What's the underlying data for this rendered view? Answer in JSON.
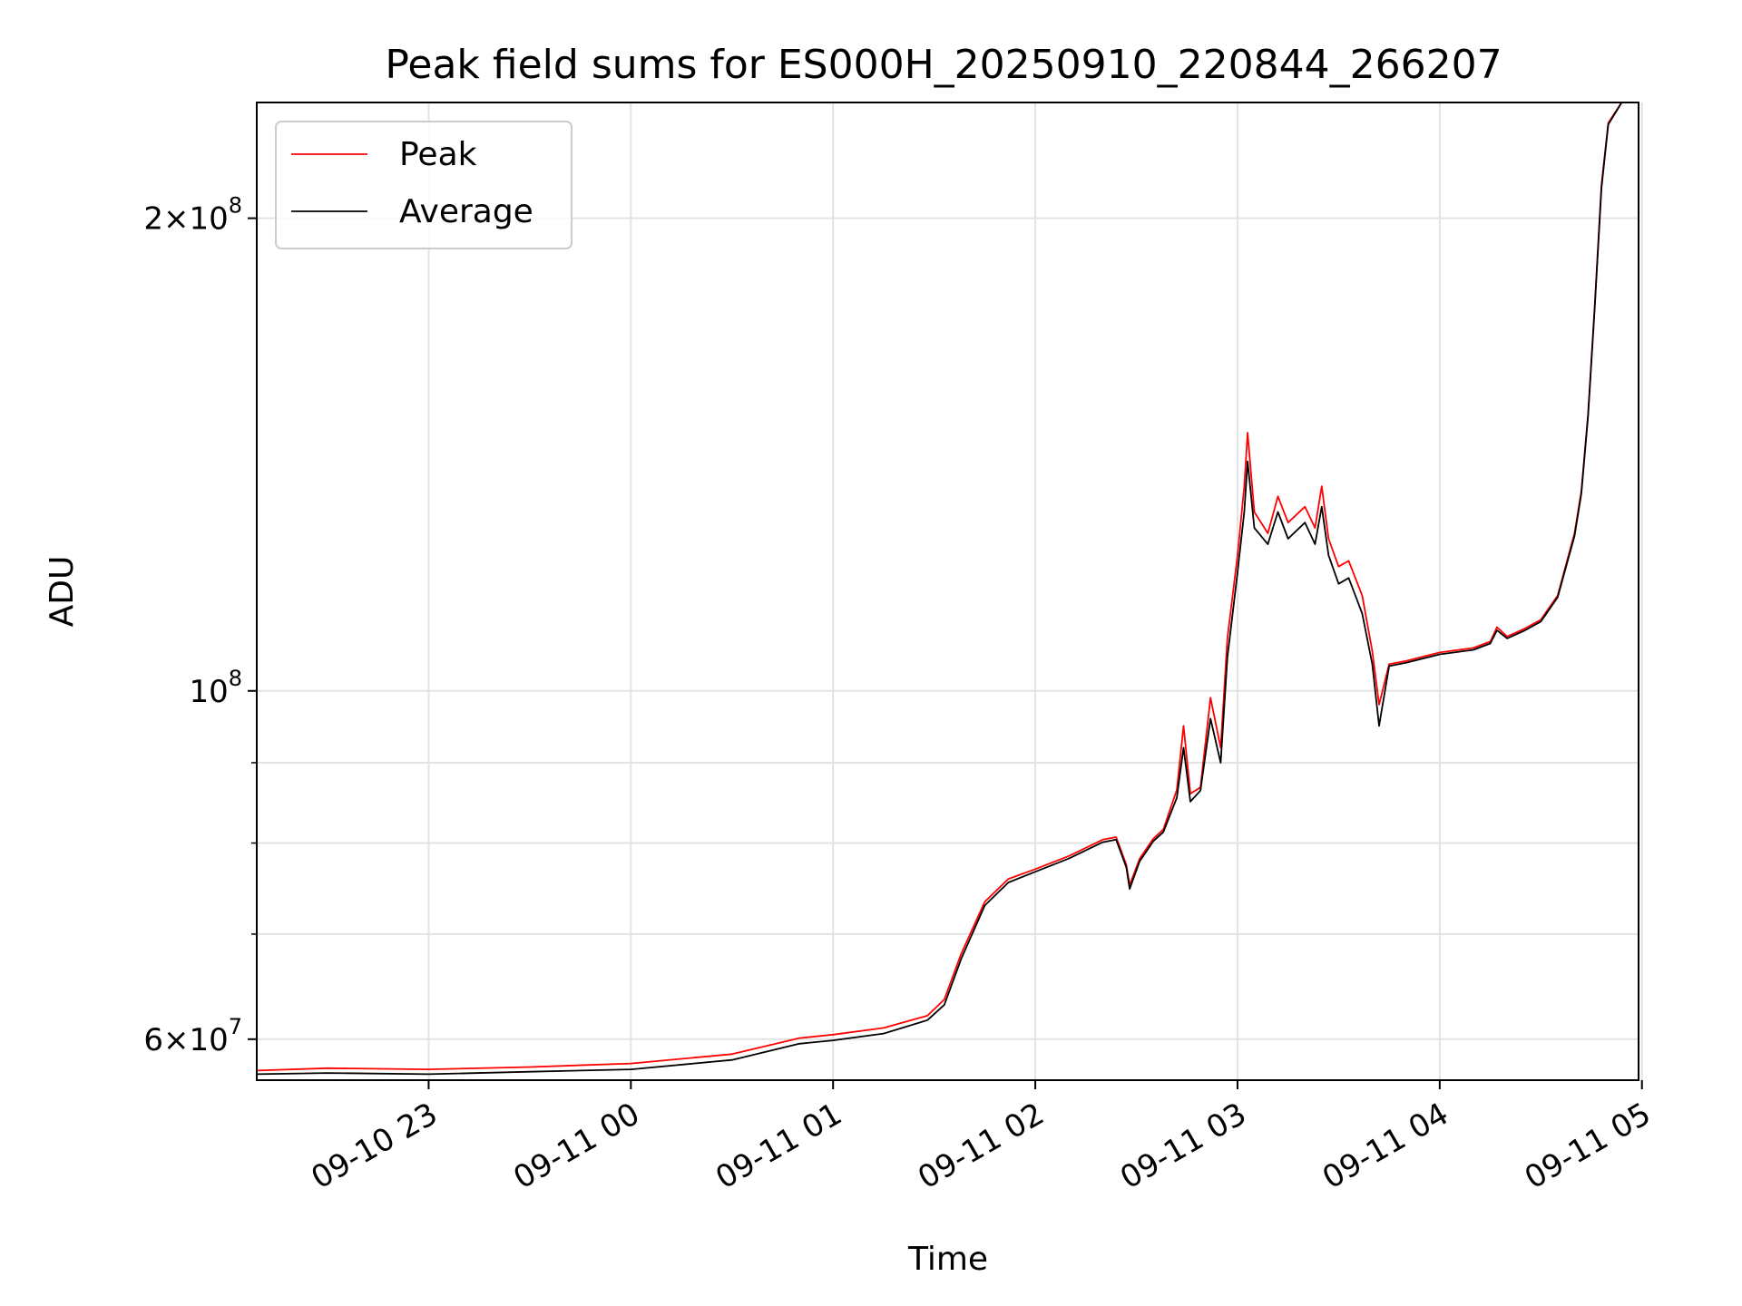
{
  "chart_data": {
    "type": "line",
    "title": "Peak field sums for ES000H_20250910_220844_266207",
    "xlabel": "Time",
    "ylabel": "ADU",
    "y_scale": "log",
    "x_range": [
      "2025-09-10 22:09",
      "2025-09-11 04:59"
    ],
    "ylim": [
      56500000,
      237000000
    ],
    "grid": true,
    "legend_position": "top-left",
    "x_ticks": [
      {
        "time": "2025-09-10 23:00",
        "label": "09-10 23"
      },
      {
        "time": "2025-09-11 00:00",
        "label": "09-11 00"
      },
      {
        "time": "2025-09-11 01:00",
        "label": "09-11 01"
      },
      {
        "time": "2025-09-11 02:00",
        "label": "09-11 02"
      },
      {
        "time": "2025-09-11 03:00",
        "label": "09-11 03"
      },
      {
        "time": "2025-09-11 04:00",
        "label": "09-11 04"
      },
      {
        "time": "2025-09-11 05:00",
        "label": "09-11 05"
      }
    ],
    "y_major_ticks": [
      {
        "value": 60000000,
        "mantissa": "6",
        "exp": "7"
      },
      {
        "value": 100000000,
        "mantissa": "",
        "exp": "8"
      },
      {
        "value": 200000000,
        "mantissa": "2",
        "exp": "8"
      }
    ],
    "y_minor_ticks": [
      70000000,
      80000000,
      90000000
    ],
    "series": [
      {
        "name": "Peak",
        "color": "#ff0000",
        "points": [
          [
            "2025-09-10 22:09",
            57300000
          ],
          [
            "2025-09-10 22:30",
            57500000
          ],
          [
            "2025-09-10 23:00",
            57400000
          ],
          [
            "2025-09-10 23:30",
            57600000
          ],
          [
            "2025-09-11 00:00",
            57900000
          ],
          [
            "2025-09-11 00:30",
            58700000
          ],
          [
            "2025-09-11 00:50",
            60100000
          ],
          [
            "2025-09-11 01:00",
            60400000
          ],
          [
            "2025-09-11 01:15",
            61000000
          ],
          [
            "2025-09-11 01:28",
            62100000
          ],
          [
            "2025-09-11 01:33",
            63600000
          ],
          [
            "2025-09-11 01:38",
            68000000
          ],
          [
            "2025-09-11 01:45",
            73400000
          ],
          [
            "2025-09-11 01:52",
            75900000
          ],
          [
            "2025-09-11 02:00",
            77000000
          ],
          [
            "2025-09-11 02:10",
            78500000
          ],
          [
            "2025-09-11 02:20",
            80400000
          ],
          [
            "2025-09-11 02:24",
            80700000
          ],
          [
            "2025-09-11 02:27",
            77500000
          ],
          [
            "2025-09-11 02:28",
            75200000
          ],
          [
            "2025-09-11 02:31",
            78200000
          ],
          [
            "2025-09-11 02:35",
            80500000
          ],
          [
            "2025-09-11 02:38",
            81600000
          ],
          [
            "2025-09-11 02:42",
            86500000
          ],
          [
            "2025-09-11 02:44",
            95000000
          ],
          [
            "2025-09-11 02:46",
            86000000
          ],
          [
            "2025-09-11 02:49",
            86800000
          ],
          [
            "2025-09-11 02:52",
            99000000
          ],
          [
            "2025-09-11 02:55",
            92000000
          ],
          [
            "2025-09-11 02:57",
            108000000
          ],
          [
            "2025-09-11 03:00",
            122000000
          ],
          [
            "2025-09-11 03:02",
            135000000
          ],
          [
            "2025-09-11 03:03",
            146000000
          ],
          [
            "2025-09-11 03:05",
            130000000
          ],
          [
            "2025-09-11 03:09",
            126000000
          ],
          [
            "2025-09-11 03:12",
            133000000
          ],
          [
            "2025-09-11 03:15",
            128000000
          ],
          [
            "2025-09-11 03:20",
            131000000
          ],
          [
            "2025-09-11 03:23",
            127000000
          ],
          [
            "2025-09-11 03:25",
            135000000
          ],
          [
            "2025-09-11 03:27",
            125000000
          ],
          [
            "2025-09-11 03:30",
            120000000
          ],
          [
            "2025-09-11 03:33",
            121000000
          ],
          [
            "2025-09-11 03:37",
            115000000
          ],
          [
            "2025-09-11 03:40",
            106000000
          ],
          [
            "2025-09-11 03:42",
            98000000
          ],
          [
            "2025-09-11 03:45",
            104000000
          ],
          [
            "2025-09-11 03:50",
            104500000
          ],
          [
            "2025-09-11 04:00",
            105800000
          ],
          [
            "2025-09-11 04:10",
            106500000
          ],
          [
            "2025-09-11 04:15",
            107500000
          ],
          [
            "2025-09-11 04:17",
            109800000
          ],
          [
            "2025-09-11 04:20",
            108300000
          ],
          [
            "2025-09-11 04:25",
            109500000
          ],
          [
            "2025-09-11 04:30",
            111000000
          ],
          [
            "2025-09-11 04:35",
            115000000
          ],
          [
            "2025-09-11 04:40",
            126000000
          ],
          [
            "2025-09-11 04:42",
            134000000
          ],
          [
            "2025-09-11 04:44",
            150000000
          ],
          [
            "2025-09-11 04:46",
            176000000
          ],
          [
            "2025-09-11 04:48",
            210000000
          ],
          [
            "2025-09-11 04:50",
            230000000
          ],
          [
            "2025-09-11 04:54",
            237000000
          ],
          [
            "2025-09-11 04:59",
            237000000
          ]
        ]
      },
      {
        "name": "Average",
        "color": "#000000",
        "points": [
          [
            "2025-09-10 22:09",
            57000000
          ],
          [
            "2025-09-10 22:30",
            57100000
          ],
          [
            "2025-09-10 23:00",
            57000000
          ],
          [
            "2025-09-10 23:30",
            57200000
          ],
          [
            "2025-09-11 00:00",
            57400000
          ],
          [
            "2025-09-11 00:30",
            58200000
          ],
          [
            "2025-09-11 00:50",
            59600000
          ],
          [
            "2025-09-11 01:00",
            59900000
          ],
          [
            "2025-09-11 01:15",
            60500000
          ],
          [
            "2025-09-11 01:28",
            61700000
          ],
          [
            "2025-09-11 01:33",
            63100000
          ],
          [
            "2025-09-11 01:38",
            67500000
          ],
          [
            "2025-09-11 01:45",
            73000000
          ],
          [
            "2025-09-11 01:52",
            75500000
          ],
          [
            "2025-09-11 02:00",
            76700000
          ],
          [
            "2025-09-11 02:10",
            78200000
          ],
          [
            "2025-09-11 02:20",
            80100000
          ],
          [
            "2025-09-11 02:24",
            80400000
          ],
          [
            "2025-09-11 02:27",
            77200000
          ],
          [
            "2025-09-11 02:28",
            74800000
          ],
          [
            "2025-09-11 02:31",
            77900000
          ],
          [
            "2025-09-11 02:35",
            80200000
          ],
          [
            "2025-09-11 02:38",
            81300000
          ],
          [
            "2025-09-11 02:42",
            85500000
          ],
          [
            "2025-09-11 02:44",
            92000000
          ],
          [
            "2025-09-11 02:46",
            85000000
          ],
          [
            "2025-09-11 02:49",
            86400000
          ],
          [
            "2025-09-11 02:52",
            96000000
          ],
          [
            "2025-09-11 02:55",
            90000000
          ],
          [
            "2025-09-11 02:57",
            105000000
          ],
          [
            "2025-09-11 03:00",
            119000000
          ],
          [
            "2025-09-11 03:02",
            130000000
          ],
          [
            "2025-09-11 03:03",
            140000000
          ],
          [
            "2025-09-11 03:05",
            127000000
          ],
          [
            "2025-09-11 03:09",
            124000000
          ],
          [
            "2025-09-11 03:12",
            130000000
          ],
          [
            "2025-09-11 03:15",
            125000000
          ],
          [
            "2025-09-11 03:20",
            128000000
          ],
          [
            "2025-09-11 03:23",
            124000000
          ],
          [
            "2025-09-11 03:25",
            131000000
          ],
          [
            "2025-09-11 03:27",
            122000000
          ],
          [
            "2025-09-11 03:30",
            117000000
          ],
          [
            "2025-09-11 03:33",
            118000000
          ],
          [
            "2025-09-11 03:37",
            112000000
          ],
          [
            "2025-09-11 03:40",
            104000000
          ],
          [
            "2025-09-11 03:42",
            95000000
          ],
          [
            "2025-09-11 03:45",
            103700000
          ],
          [
            "2025-09-11 03:50",
            104200000
          ],
          [
            "2025-09-11 04:00",
            105500000
          ],
          [
            "2025-09-11 04:10",
            106200000
          ],
          [
            "2025-09-11 04:15",
            107200000
          ],
          [
            "2025-09-11 04:17",
            109300000
          ],
          [
            "2025-09-11 04:20",
            108000000
          ],
          [
            "2025-09-11 04:25",
            109200000
          ],
          [
            "2025-09-11 04:30",
            110700000
          ],
          [
            "2025-09-11 04:35",
            114700000
          ],
          [
            "2025-09-11 04:40",
            125500000
          ],
          [
            "2025-09-11 04:42",
            133500000
          ],
          [
            "2025-09-11 04:44",
            149500000
          ],
          [
            "2025-09-11 04:46",
            175500000
          ],
          [
            "2025-09-11 04:48",
            209000000
          ],
          [
            "2025-09-11 04:50",
            229500000
          ],
          [
            "2025-09-11 04:54",
            237000000
          ],
          [
            "2025-09-11 04:59",
            237000000
          ]
        ]
      }
    ]
  }
}
